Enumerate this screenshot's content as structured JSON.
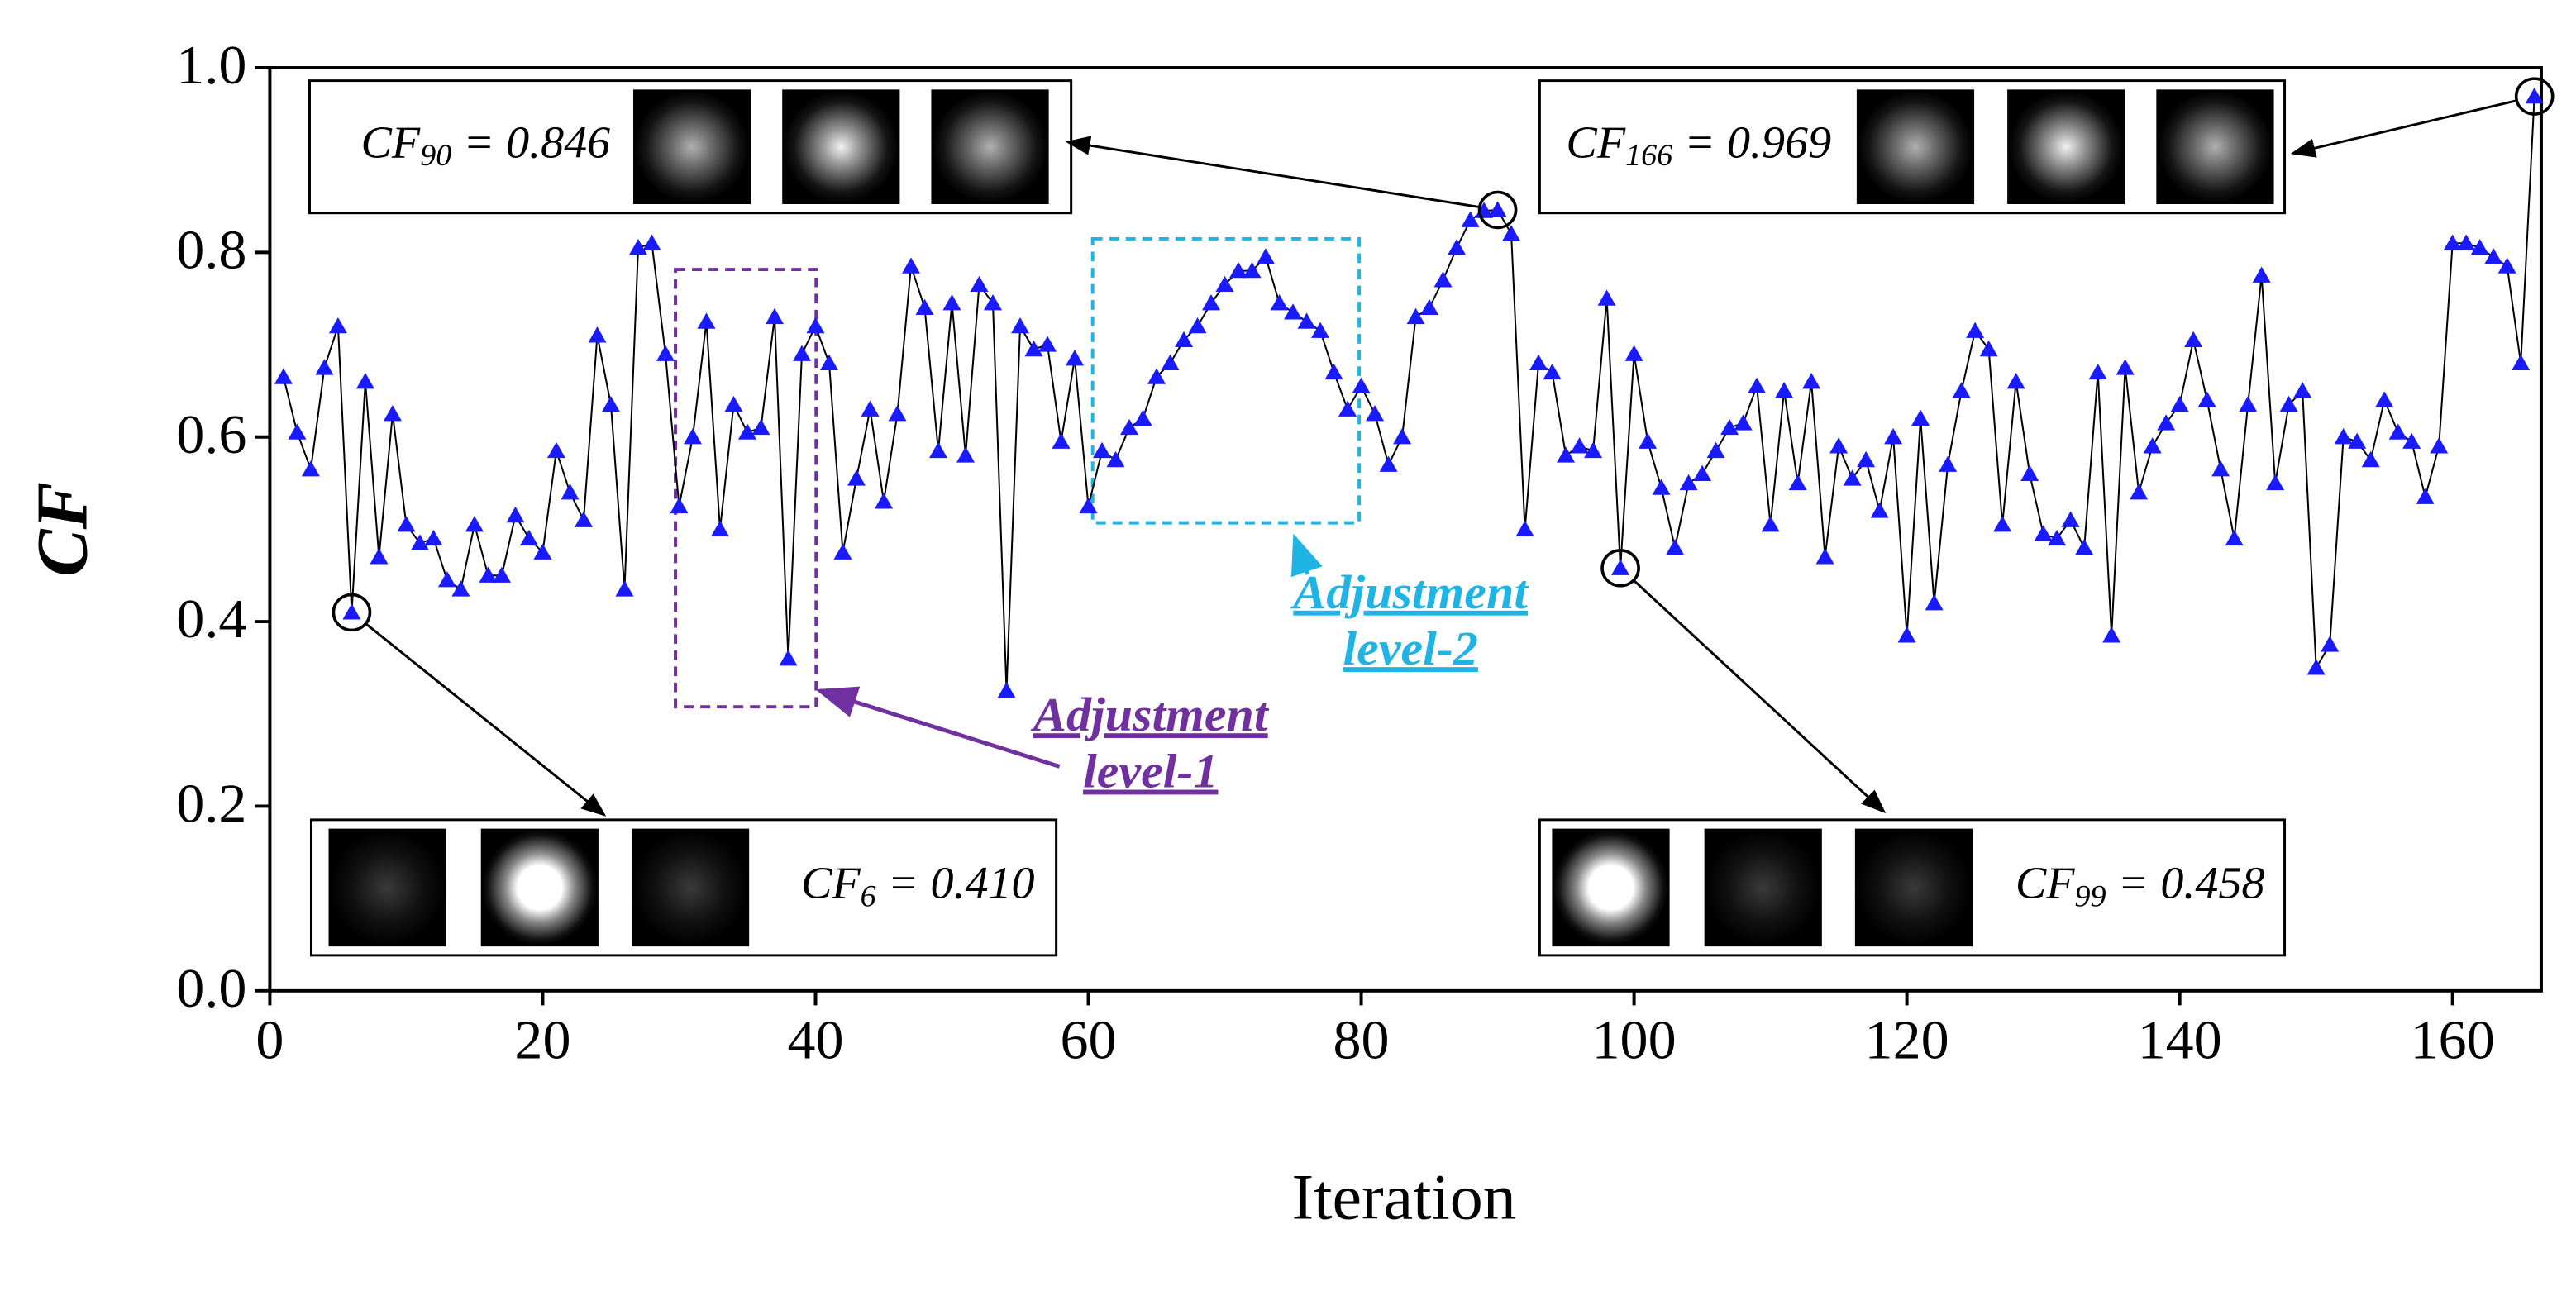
{
  "chart_data": {
    "type": "line",
    "x_label": "Iteration",
    "y_label": "CF",
    "xlim": [
      0,
      166.5
    ],
    "ylim": [
      0,
      1
    ],
    "xticks": [
      0,
      20,
      40,
      60,
      80,
      100,
      120,
      140,
      160
    ],
    "yticks": [
      {
        "value": 0,
        "label": "0.0"
      },
      {
        "value": 0.2,
        "label": "0.2"
      },
      {
        "value": 0.4,
        "label": "0.4"
      },
      {
        "value": 0.6,
        "label": "0.6"
      },
      {
        "value": 0.8,
        "label": "0.8"
      },
      {
        "value": 1,
        "label": "1.0"
      }
    ],
    "color": "#1a1aff",
    "line_color": "#000000",
    "marker": "triangle",
    "x": [
      1,
      2,
      3,
      4,
      5,
      6,
      7,
      8,
      9,
      10,
      11,
      12,
      13,
      14,
      15,
      16,
      17,
      18,
      19,
      20,
      21,
      22,
      23,
      24,
      25,
      26,
      27,
      28,
      29,
      30,
      31,
      32,
      33,
      34,
      35,
      36,
      37,
      38,
      39,
      40,
      41,
      42,
      43,
      44,
      45,
      46,
      47,
      48,
      49,
      50,
      51,
      52,
      53,
      54,
      55,
      56,
      57,
      58,
      59,
      60,
      61,
      62,
      63,
      64,
      65,
      66,
      67,
      68,
      69,
      70,
      71,
      72,
      73,
      74,
      75,
      76,
      77,
      78,
      79,
      80,
      81,
      82,
      83,
      84,
      85,
      86,
      87,
      88,
      89,
      90,
      91,
      92,
      93,
      94,
      95,
      96,
      97,
      98,
      99,
      100,
      101,
      102,
      103,
      104,
      105,
      106,
      107,
      108,
      109,
      110,
      111,
      112,
      113,
      114,
      115,
      116,
      117,
      118,
      119,
      120,
      121,
      122,
      123,
      124,
      125,
      126,
      127,
      128,
      129,
      130,
      131,
      132,
      133,
      134,
      135,
      136,
      137,
      138,
      139,
      140,
      141,
      142,
      143,
      144,
      145,
      146,
      147,
      148,
      149,
      150,
      151,
      152,
      153,
      154,
      155,
      156,
      157,
      158,
      159,
      160,
      161,
      162,
      163,
      164,
      165,
      166
    ],
    "values": [
      0.665,
      0.605,
      0.565,
      0.675,
      0.72,
      0.41,
      0.66,
      0.47,
      0.625,
      0.505,
      0.485,
      0.49,
      0.445,
      0.435,
      0.505,
      0.45,
      0.45,
      0.515,
      0.49,
      0.475,
      0.585,
      0.54,
      0.51,
      0.71,
      0.635,
      0.435,
      0.805,
      0.81,
      0.69,
      0.525,
      0.6,
      0.725,
      0.5,
      0.635,
      0.605,
      0.61,
      0.73,
      0.36,
      0.69,
      0.72,
      0.68,
      0.475,
      0.555,
      0.63,
      0.53,
      0.625,
      0.785,
      0.74,
      0.585,
      0.745,
      0.58,
      0.765,
      0.745,
      0.325,
      0.72,
      0.695,
      0.7,
      0.595,
      0.685,
      0.525,
      0.585,
      0.575,
      0.61,
      0.62,
      0.665,
      0.68,
      0.705,
      0.72,
      0.745,
      0.765,
      0.78,
      0.78,
      0.795,
      0.745,
      0.735,
      0.725,
      0.715,
      0.67,
      0.63,
      0.655,
      0.625,
      0.57,
      0.6,
      0.73,
      0.74,
      0.77,
      0.805,
      0.835,
      0.845,
      0.846,
      0.82,
      0.5,
      0.68,
      0.67,
      0.58,
      0.59,
      0.585,
      0.75,
      0.458,
      0.69,
      0.595,
      0.545,
      0.48,
      0.55,
      0.56,
      0.585,
      0.61,
      0.615,
      0.655,
      0.505,
      0.65,
      0.55,
      0.66,
      0.47,
      0.59,
      0.555,
      0.575,
      0.52,
      0.6,
      0.385,
      0.62,
      0.42,
      0.57,
      0.65,
      0.715,
      0.695,
      0.505,
      0.66,
      0.56,
      0.495,
      0.49,
      0.51,
      0.48,
      0.67,
      0.385,
      0.675,
      0.54,
      0.59,
      0.615,
      0.635,
      0.705,
      0.64,
      0.565,
      0.49,
      0.635,
      0.775,
      0.55,
      0.635,
      0.65,
      0.35,
      0.375,
      0.6,
      0.595,
      0.575,
      0.64,
      0.605,
      0.595,
      0.535,
      0.59,
      0.81,
      0.81,
      0.805,
      0.795,
      0.785,
      0.68,
      0.969
    ],
    "annotations": [
      {
        "text": "CF",
        "sub": "90",
        "rest": "= 0.846"
      },
      {
        "text": "CF",
        "sub": "166",
        "rest": "= 0.969"
      },
      {
        "text": "CF",
        "sub": "6",
        "rest": "= 0.410"
      },
      {
        "text": "CF",
        "sub": "99",
        "rest": "= 0.458"
      }
    ],
    "adjustments": [
      {
        "lines": [
          "Adjustment",
          "level-1"
        ],
        "color": "#7030a0"
      },
      {
        "lines": [
          "Adjustment",
          "level-2"
        ],
        "color": "#1fb4e4"
      }
    ]
  }
}
